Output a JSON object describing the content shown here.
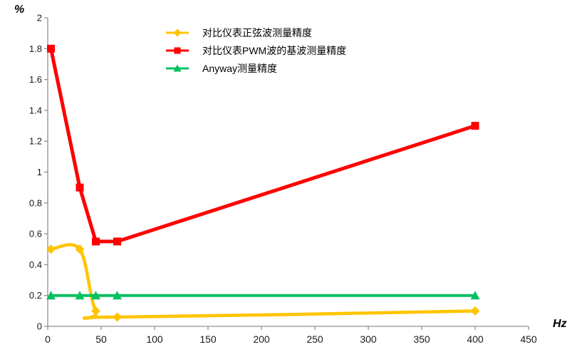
{
  "chart_data": {
    "type": "line",
    "title": "",
    "xlabel": "Hz",
    "ylabel": "%",
    "xlim": [
      0,
      450
    ],
    "ylim": [
      0,
      2
    ],
    "x_ticks": [
      "0",
      "50",
      "100",
      "150",
      "200",
      "250",
      "300",
      "350",
      "400",
      "450"
    ],
    "y_ticks": [
      "0",
      "0.2",
      "0.4",
      "0.6",
      "0.8",
      "1",
      "1.2",
      "1.4",
      "1.6",
      "1.8",
      "2"
    ],
    "grid": false,
    "legend_position": "top-center",
    "axis_color": "#909090",
    "tick_label_color": "#1a1a1a",
    "series": [
      {
        "name": "对比仪表正弦波测量精度",
        "color": "#FFC400",
        "marker": "diamond",
        "smooth": true,
        "points": [
          [
            3,
            0.5
          ],
          [
            30,
            0.5
          ],
          [
            45,
            0.1
          ],
          [
            65,
            0.06
          ],
          [
            400,
            0.1
          ]
        ]
      },
      {
        "name": "对比仪表PWM波的基波测量精度",
        "color": "#FF0000",
        "marker": "square",
        "smooth": false,
        "points": [
          [
            3,
            1.8
          ],
          [
            30,
            0.9
          ],
          [
            45,
            0.55
          ],
          [
            65,
            0.55
          ],
          [
            400,
            1.3
          ]
        ]
      },
      {
        "name": "Anyway测量精度",
        "color": "#00C060",
        "marker": "triangle",
        "smooth": false,
        "points": [
          [
            3,
            0.2
          ],
          [
            30,
            0.2
          ],
          [
            45,
            0.2
          ],
          [
            65,
            0.2
          ],
          [
            400,
            0.2
          ]
        ]
      }
    ]
  }
}
